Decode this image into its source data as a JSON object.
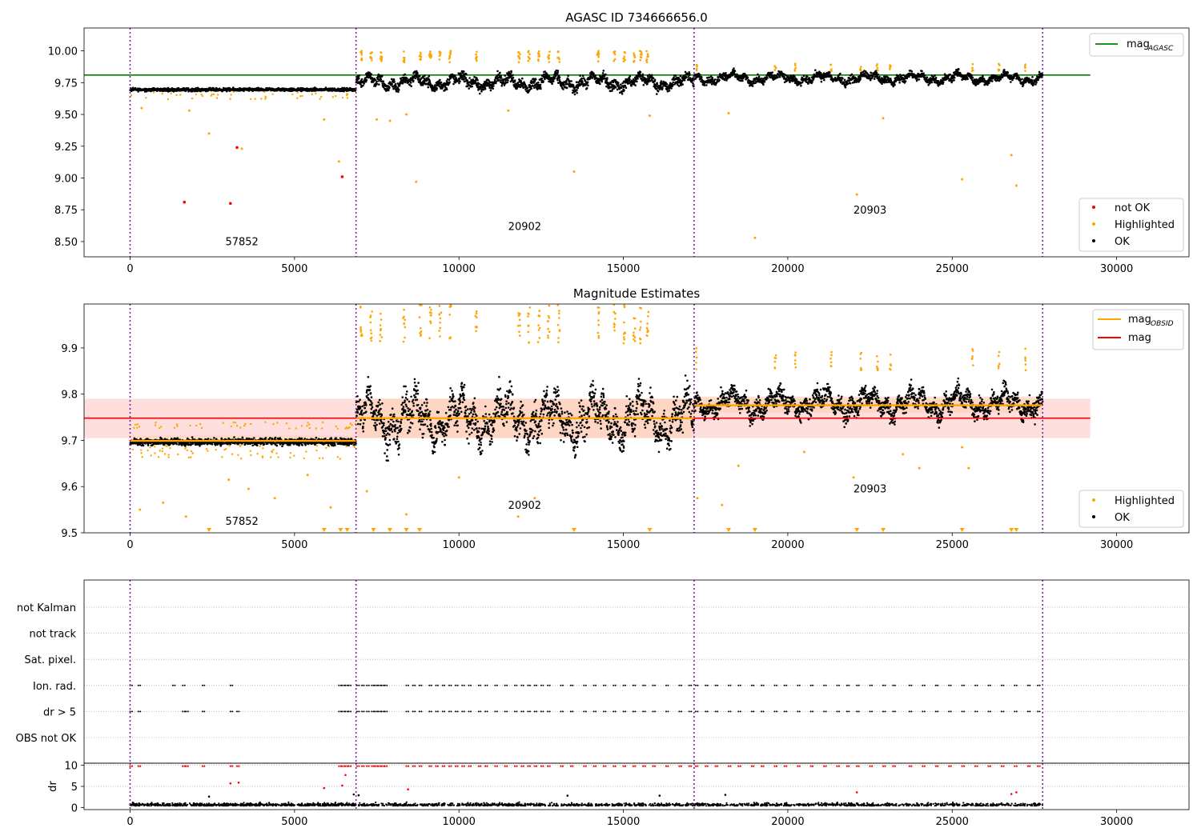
{
  "figure_title": "AGASC ID 734666656.0",
  "colors": {
    "purple_line": "#7a1fa2",
    "green": "#008000",
    "orange": "#ffa500",
    "red": "#ff0000",
    "ok": "#000000",
    "band": "#ffb6b6",
    "highlight_band": "#ffd0b0"
  },
  "obsids": [
    "57852",
    "20902",
    "20903"
  ],
  "chart_data": [
    {
      "type": "scatter",
      "title": "AGASC ID 734666656.0",
      "xlim": [
        -1400,
        32200
      ],
      "ylim": [
        8.38,
        10.18
      ],
      "x_ticks": [
        0,
        5000,
        10000,
        15000,
        20000,
        25000,
        30000
      ],
      "y_ticks": [
        8.5,
        8.75,
        9.0,
        9.25,
        9.5,
        9.75,
        10.0
      ],
      "y_tick_labels": [
        "8.50",
        "8.75",
        "9.00",
        "9.25",
        "9.50",
        "9.75",
        "10.00"
      ],
      "grid": false,
      "obsid_boundaries": [
        0,
        6870,
        17150,
        27750
      ],
      "obsid_labels": [
        {
          "text": "57852",
          "x": 3400,
          "y": 8.47
        },
        {
          "text": "20902",
          "x": 12000,
          "y": 8.59
        },
        {
          "text": "20903",
          "x": 22500,
          "y": 8.72
        }
      ],
      "segments": [
        {
          "x_start": 0,
          "x_end": 6870,
          "ok_center": 9.695,
          "ok_spread": 0.03
        },
        {
          "x_start": 6870,
          "x_end": 17150,
          "ok_center": 9.755,
          "ok_spread": 0.1
        },
        {
          "x_start": 17150,
          "x_end": 27750,
          "ok_center": 9.785,
          "ok_spread": 0.07
        }
      ],
      "lines": [
        {
          "name": "mag_AGASC",
          "y": 9.81,
          "x_range": [
            -1400,
            29200
          ],
          "color": "#008000"
        }
      ],
      "not_ok_points": [
        {
          "x": 1650,
          "y": 8.81
        },
        {
          "x": 3050,
          "y": 8.8
        },
        {
          "x": 3250,
          "y": 9.24
        },
        {
          "x": 6450,
          "y": 9.01
        }
      ],
      "highlighted_outliers": [
        {
          "x": 2400,
          "y": 9.35
        },
        {
          "x": 3400,
          "y": 9.23
        },
        {
          "x": 6350,
          "y": 9.13
        },
        {
          "x": 8700,
          "y": 8.97
        },
        {
          "x": 13500,
          "y": 9.05
        },
        {
          "x": 19000,
          "y": 8.53
        },
        {
          "x": 22100,
          "y": 8.87
        },
        {
          "x": 25300,
          "y": 8.99
        },
        {
          "x": 26800,
          "y": 9.18
        },
        {
          "x": 26950,
          "y": 8.94
        },
        {
          "x": 7500,
          "y": 9.46
        },
        {
          "x": 7900,
          "y": 9.45
        },
        {
          "x": 8400,
          "y": 9.5
        },
        {
          "x": 11500,
          "y": 9.53
        },
        {
          "x": 15800,
          "y": 9.49
        },
        {
          "x": 18200,
          "y": 9.51
        },
        {
          "x": 22900,
          "y": 9.47
        },
        {
          "x": 5900,
          "y": 9.46
        },
        {
          "x": 350,
          "y": 9.55
        },
        {
          "x": 1800,
          "y": 9.53
        }
      ],
      "highlighted_high_cluster_x": [
        7000,
        7300,
        7600,
        8300,
        8800,
        9100,
        9400,
        9700,
        10500,
        11800,
        12100,
        12400,
        12700,
        13000,
        14200,
        14700,
        15000,
        15300,
        15500,
        15700
      ],
      "highlighted_high_cluster_x2": [
        17200,
        19600,
        20200,
        21300,
        22200,
        22700,
        23100,
        25600,
        26400,
        27200
      ],
      "legend": {
        "placement": "upper-right",
        "entries": [
          {
            "label": "mag",
            "sub": "AGASC",
            "color": "#008000",
            "kind": "line"
          }
        ]
      },
      "legend2": {
        "placement": "lower-right",
        "entries": [
          {
            "label": "not OK",
            "color": "#ff0000",
            "kind": "dot"
          },
          {
            "label": "Highlighted",
            "color": "#ffa500",
            "kind": "dot"
          },
          {
            "label": "OK",
            "color": "#000000",
            "kind": "dot"
          }
        ]
      }
    },
    {
      "type": "scatter",
      "title": "Magnitude Estimates",
      "xlim": [
        -1400,
        32200
      ],
      "ylim": [
        9.5,
        9.995
      ],
      "x_ticks": [
        0,
        5000,
        10000,
        15000,
        20000,
        25000,
        30000
      ],
      "y_ticks": [
        9.5,
        9.6,
        9.7,
        9.8,
        9.9
      ],
      "y_tick_labels": [
        "9.5",
        "9.6",
        "9.7",
        "9.8",
        "9.9"
      ],
      "grid": false,
      "obsid_boundaries": [
        0,
        6870,
        17150,
        27750
      ],
      "obsid_labels": [
        {
          "text": "57852",
          "x": 3400,
          "y": 9.517
        },
        {
          "text": "20902",
          "x": 12000,
          "y": 9.552
        },
        {
          "text": "20903",
          "x": 22500,
          "y": 9.587
        }
      ],
      "mag_band": {
        "y_low": 9.705,
        "y_high": 9.79,
        "x_range": [
          -1400,
          29200
        ]
      },
      "mag_line": {
        "name": "mag",
        "y": 9.748,
        "x_range": [
          -1400,
          29200
        ],
        "color": "#ff0000"
      },
      "mag_obsid": [
        {
          "x_start": 0,
          "x_end": 6870,
          "y": 9.699
        },
        {
          "x_start": 6870,
          "x_end": 17150,
          "y": 9.748
        },
        {
          "x_start": 17150,
          "x_end": 27750,
          "y": 9.776
        }
      ],
      "obsid_bands": [
        {
          "x_start": 0,
          "x_end": 6870,
          "y_low": 9.69,
          "y_high": 9.71
        },
        {
          "x_start": 6870,
          "x_end": 17150,
          "y_low": 9.705,
          "y_high": 9.79
        },
        {
          "x_start": 17150,
          "x_end": 27750,
          "y_low": 9.76,
          "y_high": 9.795
        }
      ],
      "segments": [
        {
          "x_start": 0,
          "x_end": 6870,
          "ok_center": 9.697,
          "ok_spread": 0.018
        },
        {
          "x_start": 6870,
          "x_end": 17150,
          "ok_center": 9.748,
          "ok_spread": 0.09
        },
        {
          "x_start": 17150,
          "x_end": 27750,
          "ok_center": 9.78,
          "ok_spread": 0.05
        }
      ],
      "down_markers_x": [
        2400,
        5900,
        6400,
        6600,
        7400,
        7900,
        8400,
        8800,
        13500,
        15800,
        18200,
        19000,
        22100,
        22900,
        25300,
        26800,
        26950
      ],
      "highlighted_outliers": [
        {
          "x": 300,
          "y": 9.55
        },
        {
          "x": 1000,
          "y": 9.565
        },
        {
          "x": 1700,
          "y": 9.535
        },
        {
          "x": 3000,
          "y": 9.615
        },
        {
          "x": 3600,
          "y": 9.595
        },
        {
          "x": 4400,
          "y": 9.575
        },
        {
          "x": 5400,
          "y": 9.625
        },
        {
          "x": 6100,
          "y": 9.555
        },
        {
          "x": 7200,
          "y": 9.59
        },
        {
          "x": 8400,
          "y": 9.54
        },
        {
          "x": 10000,
          "y": 9.62
        },
        {
          "x": 11800,
          "y": 9.535
        },
        {
          "x": 12300,
          "y": 9.575
        },
        {
          "x": 17250,
          "y": 9.575
        },
        {
          "x": 18000,
          "y": 9.56
        },
        {
          "x": 18500,
          "y": 9.645
        },
        {
          "x": 20500,
          "y": 9.675
        },
        {
          "x": 22000,
          "y": 9.62
        },
        {
          "x": 23500,
          "y": 9.67
        },
        {
          "x": 24000,
          "y": 9.64
        },
        {
          "x": 25300,
          "y": 9.685
        },
        {
          "x": 25500,
          "y": 9.64
        }
      ],
      "highlighted_high_cluster_x": [
        7000,
        7300,
        7600,
        8300,
        8800,
        9100,
        9400,
        9700,
        10500,
        11800,
        12100,
        12400,
        12700,
        13000,
        14200,
        14700,
        15000,
        15300,
        15500,
        15700
      ],
      "highlighted_high_cluster_x2": [
        17200,
        19600,
        20200,
        21300,
        22200,
        22700,
        23100,
        25600,
        26400,
        27200
      ],
      "legend": {
        "placement": "upper-right",
        "entries": [
          {
            "label": "mag",
            "sub": "OBSID",
            "color": "#ffa500",
            "kind": "line"
          },
          {
            "label": "mag",
            "sub": "",
            "color": "#ff0000",
            "kind": "line"
          }
        ]
      },
      "legend2": {
        "placement": "lower-right",
        "entries": [
          {
            "label": "Highlighted",
            "color": "#ffa500",
            "kind": "dot"
          },
          {
            "label": "OK",
            "color": "#000000",
            "kind": "dot"
          }
        ]
      }
    },
    {
      "type": "scatter",
      "title": "",
      "xlim": [
        -1400,
        32200
      ],
      "categories": [
        "not Kalman",
        "not track",
        "Sat. pixel.",
        "Ion. rad.",
        "dr > 5",
        "OBS not OK"
      ],
      "grid": "horizontal-dotted",
      "obsid_boundaries": [
        0,
        6870,
        17150,
        27750
      ],
      "flag_x_ionrad": [
        0,
        250,
        1300,
        1600,
        2200,
        3050,
        6350,
        6450,
        6550,
        6650,
        6900,
        7050,
        7200,
        7350,
        7450,
        7550,
        7650,
        7750,
        8400,
        8600,
        8800,
        9100,
        9300,
        9500,
        9700,
        9900,
        10100,
        10300,
        10600,
        10800,
        11100,
        11400,
        11700,
        11900,
        12100,
        12300,
        12500,
        12700,
        13100,
        13400,
        13800,
        14100,
        14400,
        14700,
        15000,
        15300,
        15600,
        15900,
        16300,
        16700,
        17000,
        17200,
        17500,
        17800,
        18200,
        18500,
        18900,
        19200,
        19600,
        19900,
        20300,
        20700,
        21100,
        21500,
        21800,
        22100,
        22500,
        22900,
        23200,
        23700,
        24100,
        24500,
        24900,
        25300,
        25700,
        26100,
        26500,
        26900,
        27300,
        27600
      ],
      "flag_x_dr5": [
        0,
        250,
        1600,
        1700,
        2200,
        3050,
        3250,
        6350,
        6450,
        6550,
        6650,
        6900,
        7050,
        7200,
        7350,
        7450,
        7550,
        7650,
        7750,
        8400,
        8600,
        8800,
        9100,
        9300,
        9500,
        9700,
        9900,
        10100,
        10300,
        10600,
        10800,
        11100,
        11400,
        11700,
        11900,
        12100,
        12300,
        12500,
        12700,
        13100,
        13400,
        13800,
        14100,
        14400,
        14700,
        15000,
        15300,
        15600,
        15900,
        16300,
        16700,
        17000,
        17200,
        17500,
        17800,
        18200,
        18500,
        18900,
        19200,
        19600,
        19900,
        20300,
        20700,
        21100,
        21500,
        21800,
        22100,
        22500,
        22900,
        23200,
        23700,
        24100,
        24500,
        24900,
        25300,
        25700,
        26100,
        26500,
        26900,
        27300,
        27600
      ]
    },
    {
      "type": "scatter",
      "title": "",
      "xlim": [
        -1400,
        32200
      ],
      "ylim": [
        -0.5,
        10.5
      ],
      "ylabel": "dr",
      "x_ticks": [
        0,
        5000,
        10000,
        15000,
        20000,
        25000,
        30000
      ],
      "y_ticks": [
        0,
        5,
        10
      ],
      "y_tick_labels": [
        "0",
        "5",
        "10"
      ],
      "obsid_boundaries": [
        0,
        6870,
        17150,
        27750
      ],
      "dr_ok_level": 0.4,
      "dr_red_points": [
        {
          "x": 3050,
          "y": 5.7
        },
        {
          "x": 3300,
          "y": 5.9
        },
        {
          "x": 5900,
          "y": 4.6
        },
        {
          "x": 6450,
          "y": 5.2
        },
        {
          "x": 6550,
          "y": 7.7
        },
        {
          "x": 8450,
          "y": 4.3
        },
        {
          "x": 22100,
          "y": 3.6
        },
        {
          "x": 26800,
          "y": 3.2
        },
        {
          "x": 26950,
          "y": 3.6
        }
      ],
      "dr_black_points": [
        {
          "x": 6800,
          "y": 3.1
        },
        {
          "x": 6950,
          "y": 2.9
        },
        {
          "x": 13300,
          "y": 2.8
        },
        {
          "x": 16100,
          "y": 2.8
        },
        {
          "x": 18100,
          "y": 3.0
        },
        {
          "x": 2400,
          "y": 2.6
        }
      ]
    }
  ]
}
